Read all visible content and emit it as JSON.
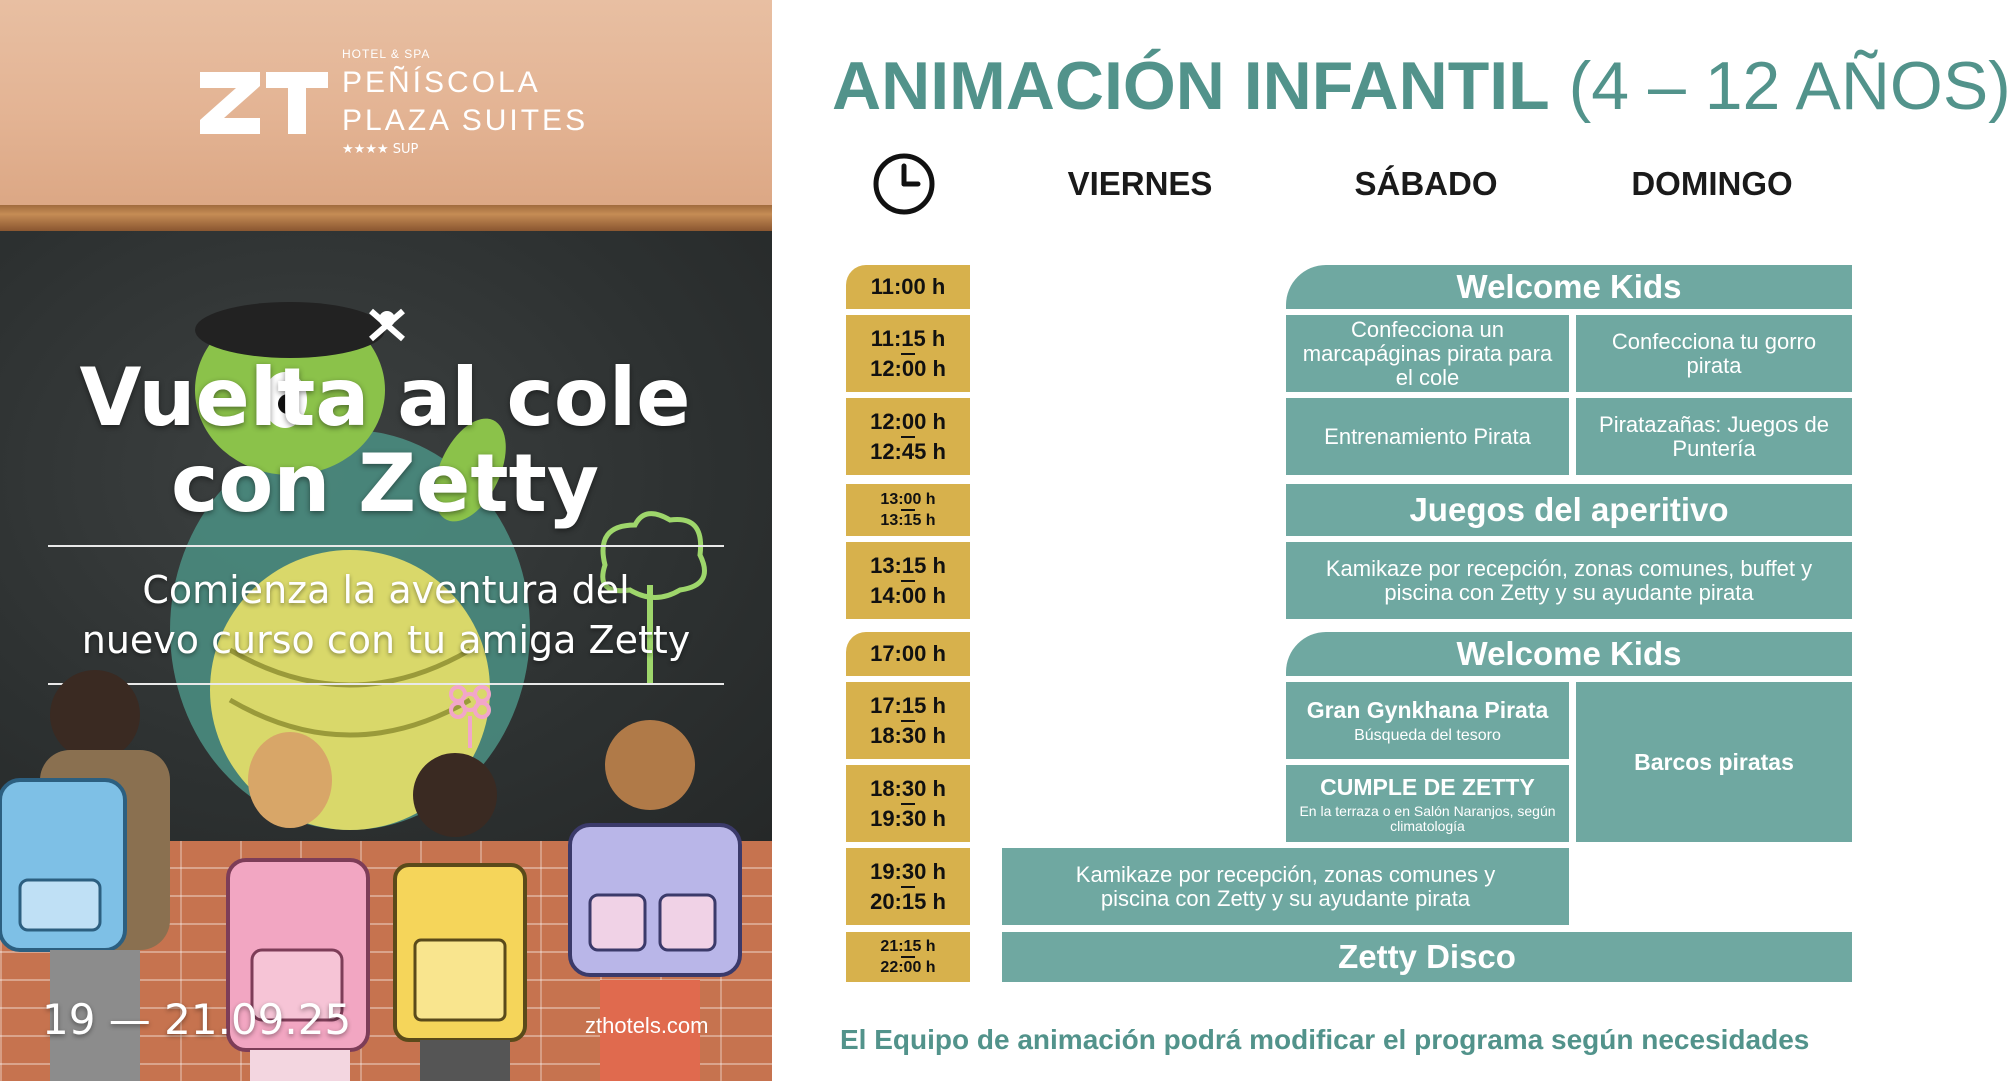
{
  "poster": {
    "logo": {
      "small": "HOTEL & SPA",
      "line1": "PEÑÍSCOLA",
      "line2": "PLAZA SUITES",
      "stars": "★★★★ SUP"
    },
    "title_line1": "Vuelta al cole",
    "title_line2": "con Zetty",
    "subtitle_line1": "Comienza la aventura del",
    "subtitle_line2": "nuevo curso con tu amiga Zetty",
    "date": "19 — 21.09.25",
    "url": "zthotels.com"
  },
  "schedule": {
    "title_bold": "ANIMACIÓN INFANTIL",
    "title_light": "(4 – 12 AÑOS)",
    "clock_icon": "clock-icon",
    "days": [
      "VIERNES",
      "SÁBADO",
      "DOMINGO"
    ],
    "times": [
      {
        "a": "11:00 h",
        "b": ""
      },
      {
        "a": "11:15 h",
        "b": "12:00 h"
      },
      {
        "a": "12:00 h",
        "b": "12:45 h"
      },
      {
        "a": "13:00 h",
        "b": "13:15 h"
      },
      {
        "a": "13:15 h",
        "b": "14:00 h"
      },
      {
        "a": "17:00 h",
        "b": ""
      },
      {
        "a": "17:15 h",
        "b": "18:30 h"
      },
      {
        "a": "18:30 h",
        "b": "19:30 h"
      },
      {
        "a": "19:30 h",
        "b": "20:15 h"
      },
      {
        "a": "21:15 h",
        "b": "22:00 h"
      }
    ],
    "activities": {
      "welcome_kids_am": "Welcome Kids",
      "sat_1115": "Confecciona un marcapáginas pirata para el cole",
      "sun_1115": "Confecciona tu gorro pirata",
      "sat_1200": "Entrenamiento Pirata",
      "sun_1200": "Piratazañas: Juegos de Puntería",
      "aperitivo": "Juegos del aperitivo",
      "kamikaze_am": "Kamikaze por recepción, zonas comunes, buffet y piscina con Zetty y su ayudante pirata",
      "welcome_kids_pm": "Welcome Kids",
      "gynkhana_title": "Gran Gynkhana Pirata",
      "gynkhana_sub": "Búsqueda del tesoro",
      "cumple_title": "CUMPLE DE ZETTY",
      "cumple_sub": "En la terraza o en Salón Naranjos, según climatología",
      "barcos": "Barcos piratas",
      "kamikaze_pm": "Kamikaze por recepción, zonas comunes y piscina con Zetty y su ayudante pirata",
      "disco": "Zetty Disco"
    },
    "footnote": "El Equipo de animación podrá modificar el programa según necesidades"
  },
  "colors": {
    "teal": "#6fa8a1",
    "title_teal": "#52938b",
    "gold": "#d7b14c"
  }
}
